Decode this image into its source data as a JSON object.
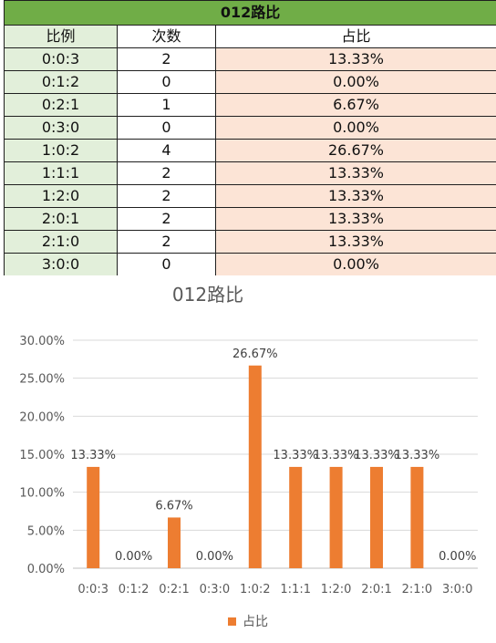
{
  "table": {
    "title": "012路比",
    "headers": [
      "比例",
      "次数",
      "占比"
    ],
    "rows": [
      {
        "ratio": "0:0:3",
        "count": "2",
        "pct": "13.33%"
      },
      {
        "ratio": "0:1:2",
        "count": "0",
        "pct": "0.00%"
      },
      {
        "ratio": "0:2:1",
        "count": "1",
        "pct": "6.67%"
      },
      {
        "ratio": "0:3:0",
        "count": "0",
        "pct": "0.00%"
      },
      {
        "ratio": "1:0:2",
        "count": "4",
        "pct": "26.67%"
      },
      {
        "ratio": "1:1:1",
        "count": "2",
        "pct": "13.33%"
      },
      {
        "ratio": "1:2:0",
        "count": "2",
        "pct": "13.33%"
      },
      {
        "ratio": "2:0:1",
        "count": "2",
        "pct": "13.33%"
      },
      {
        "ratio": "2:1:0",
        "count": "2",
        "pct": "13.33%"
      },
      {
        "ratio": "3:0:0",
        "count": "0",
        "pct": "0.00%"
      }
    ],
    "colors": {
      "title_bg": "#70ad47",
      "ratio_bg": "#e2efda",
      "pct_bg": "#fce4d6"
    }
  },
  "chart_data": {
    "type": "bar",
    "title": "012路比",
    "categories": [
      "0:0:3",
      "0:1:2",
      "0:2:1",
      "0:3:0",
      "1:0:2",
      "1:1:1",
      "1:2:0",
      "2:0:1",
      "2:1:0",
      "3:0:0"
    ],
    "series": [
      {
        "name": "占比",
        "values": [
          13.33,
          0,
          6.67,
          0,
          26.67,
          13.33,
          13.33,
          13.33,
          13.33,
          0
        ],
        "labels": [
          "13.33%",
          "0.00%",
          "6.67%",
          "0.00%",
          "26.67%",
          "13.33%",
          "13.33%",
          "13.33%",
          "13.33%",
          "0.00%"
        ],
        "color": "#ed7d31"
      }
    ],
    "yticks": [
      "0.00%",
      "5.00%",
      "10.00%",
      "15.00%",
      "20.00%",
      "25.00%",
      "30.00%"
    ],
    "ylim": [
      0,
      30
    ],
    "grid": true,
    "legend_position": "bottom"
  }
}
